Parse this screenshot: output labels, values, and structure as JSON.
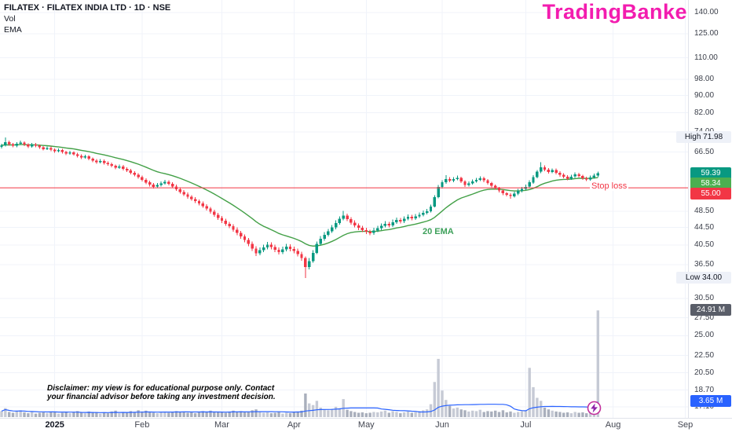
{
  "legend": {
    "symbol_line": "FILATEX · FILATEX INDIA LTD · 1D · NSE",
    "vol_label": "Vol",
    "ema_label": "EMA"
  },
  "watermark": {
    "text": "TradingBanker",
    "color": "#f31caf"
  },
  "annotations": {
    "stop_loss_label": "Stop loss",
    "ema_label": "20 EMA",
    "ema_label_color": "#3da05a",
    "disclaimer_line1": "Disclaimer: my view is for educational purpose only. Contact",
    "disclaimer_line2": "your financial advisor before taking any investment decision."
  },
  "price_axis": {
    "ticks": [
      {
        "label": "140.00",
        "price": 140
      },
      {
        "label": "125.00",
        "price": 125
      },
      {
        "label": "110.00",
        "price": 110
      },
      {
        "label": "98.00",
        "price": 98
      },
      {
        "label": "90.00",
        "price": 90
      },
      {
        "label": "82.00",
        "price": 82
      },
      {
        "label": "74.00",
        "price": 74
      },
      {
        "label": "66.50",
        "price": 66.5
      },
      {
        "label": "48.50",
        "price": 48.5
      },
      {
        "label": "44.50",
        "price": 44.5
      },
      {
        "label": "40.50",
        "price": 40.5
      },
      {
        "label": "36.50",
        "price": 36.5
      },
      {
        "label": "30.50",
        "price": 30.5
      },
      {
        "label": "27.50",
        "price": 27.5
      },
      {
        "label": "25.00",
        "price": 25
      },
      {
        "label": "22.50",
        "price": 22.5
      },
      {
        "label": "20.50",
        "price": 20.5
      },
      {
        "label": "18.70",
        "price": 18.7
      },
      {
        "label": "17.10",
        "price": 17.1
      }
    ],
    "badges": [
      {
        "kind": "range",
        "label": "High",
        "value": "71.98",
        "price": 71.98,
        "bg": "#eef1f8",
        "fg": "#131722"
      },
      {
        "kind": "price",
        "value": "59.39",
        "price": 59.39,
        "bg": "#089981",
        "fg": "#ffffff"
      },
      {
        "kind": "price",
        "value": "58.34",
        "price": 58.34,
        "bg": "#4caf50",
        "fg": "#ffffff"
      },
      {
        "kind": "price",
        "value": "55.00",
        "price": 55,
        "bg": "#f23645",
        "fg": "#ffffff"
      },
      {
        "kind": "range",
        "label": "Low",
        "value": "34.00",
        "price": 34,
        "bg": "#eef1f8",
        "fg": "#131722"
      },
      {
        "kind": "volume",
        "value": "24.91 M",
        "volume": 24.91,
        "bg": "#5a5e69",
        "fg": "#ffffff"
      },
      {
        "kind": "volume",
        "value": "3.65 M",
        "volume": 3.65,
        "bg": "#2962ff",
        "fg": "#ffffff"
      }
    ]
  },
  "time_axis": {
    "months": [
      {
        "label": "2025",
        "idx": 14,
        "bold": true
      },
      {
        "label": "Feb",
        "idx": 37
      },
      {
        "label": "Mar",
        "idx": 58
      },
      {
        "label": "Apr",
        "idx": 77
      },
      {
        "label": "May",
        "idx": 96
      },
      {
        "label": "Jun",
        "idx": 116
      },
      {
        "label": "Jul",
        "idx": 138
      },
      {
        "label": "Aug",
        "idx": 161
      },
      {
        "label": "Sep",
        "idx": 180
      }
    ]
  },
  "chart_data": {
    "type": "candlestick",
    "symbol": "FILATEX INDIA LTD",
    "exchange": "NSE",
    "interval": "1D",
    "scale": "log",
    "price_range_shown": [
      17.1,
      140.0
    ],
    "high": 71.98,
    "low": 34.0,
    "last_close": 59.39,
    "ema20_value": 58.34,
    "stop_loss": 55.0,
    "last_volume_millions": 24.91,
    "volume_ma_millions": 3.65,
    "indicators": [
      {
        "name": "EMA",
        "length": 20,
        "color": "#43a047"
      },
      {
        "name": "Volume",
        "color": "#c6cad5"
      },
      {
        "name": "Volume MA",
        "length": 20,
        "color": "#2962ff"
      }
    ],
    "colors": {
      "up": "#089981",
      "down": "#f23645",
      "ema": "#43a047",
      "vol_up": "#c6cad5",
      "vol_down": "#a9afbc",
      "vol_ma": "#2962ff",
      "stop_line": "#f23645",
      "grid": "#f0f3fa"
    },
    "columns": [
      "open",
      "high",
      "low",
      "close",
      "volume_millions"
    ],
    "candles": [
      [
        68.4,
        69.6,
        67.9,
        69.0,
        1.4
      ],
      [
        69.0,
        71.98,
        68.6,
        70.2,
        2.1
      ],
      [
        70.2,
        70.8,
        68.9,
        69.4,
        1.2
      ],
      [
        69.4,
        69.9,
        68.2,
        68.8,
        1.0
      ],
      [
        68.8,
        70.2,
        68.3,
        69.6,
        1.3
      ],
      [
        69.6,
        70.7,
        69.1,
        70.0,
        1.6
      ],
      [
        70.0,
        70.5,
        68.7,
        69.2,
        1.1
      ],
      [
        69.2,
        69.7,
        68.0,
        68.5,
        0.9
      ],
      [
        68.5,
        69.9,
        68.1,
        69.3,
        1.2
      ],
      [
        69.3,
        69.8,
        68.3,
        68.8,
        0.8
      ],
      [
        68.8,
        69.3,
        67.7,
        68.2,
        1.0
      ],
      [
        68.2,
        68.7,
        67.1,
        67.6,
        1.1
      ],
      [
        67.6,
        68.6,
        67.2,
        68.0,
        0.9
      ],
      [
        68.0,
        68.5,
        66.9,
        67.4,
        1.3
      ],
      [
        67.4,
        67.9,
        66.3,
        66.8,
        1.2
      ],
      [
        66.8,
        67.8,
        66.4,
        67.2,
        0.8
      ],
      [
        67.2,
        67.7,
        66.0,
        66.5,
        1.0
      ],
      [
        66.5,
        67.0,
        65.5,
        66.0,
        1.1
      ],
      [
        66.0,
        67.0,
        65.6,
        66.4,
        0.9
      ],
      [
        66.4,
        66.9,
        65.3,
        65.8,
        1.2
      ],
      [
        65.8,
        66.3,
        64.7,
        65.2,
        1.4
      ],
      [
        65.2,
        65.7,
        64.1,
        64.6,
        1.1
      ],
      [
        64.6,
        65.6,
        64.2,
        65.0,
        0.9
      ],
      [
        65.0,
        65.5,
        63.7,
        64.2,
        1.3
      ],
      [
        64.2,
        64.7,
        63.1,
        63.6,
        1.0
      ],
      [
        63.6,
        64.1,
        62.5,
        63.0,
        1.2
      ],
      [
        63.0,
        64.1,
        62.6,
        63.5,
        0.8
      ],
      [
        63.5,
        64.0,
        62.3,
        62.8,
        1.1
      ],
      [
        62.8,
        63.3,
        61.9,
        62.4,
        0.9
      ],
      [
        62.4,
        62.9,
        61.3,
        61.8,
        1.3
      ],
      [
        61.8,
        62.3,
        60.7,
        61.2,
        1.5
      ],
      [
        61.2,
        62.2,
        60.8,
        61.6,
        0.9
      ],
      [
        61.6,
        62.1,
        60.3,
        60.8,
        1.2
      ],
      [
        60.8,
        61.3,
        59.8,
        60.3,
        1.0
      ],
      [
        60.3,
        60.8,
        59.1,
        59.6,
        1.4
      ],
      [
        59.6,
        60.1,
        58.5,
        59.0,
        1.2
      ],
      [
        59.0,
        59.5,
        57.7,
        58.2,
        1.6
      ],
      [
        58.2,
        58.7,
        56.9,
        57.4,
        1.3
      ],
      [
        57.4,
        57.9,
        56.1,
        56.6,
        1.5
      ],
      [
        56.6,
        57.1,
        55.4,
        55.9,
        1.2
      ],
      [
        55.9,
        56.4,
        54.8,
        55.3,
        1.0
      ],
      [
        55.3,
        56.4,
        54.9,
        55.8,
        0.9
      ],
      [
        55.8,
        56.9,
        55.4,
        56.3,
        1.1
      ],
      [
        56.3,
        57.4,
        55.9,
        56.8,
        1.3
      ],
      [
        56.8,
        57.3,
        55.7,
        56.2,
        1.0
      ],
      [
        56.2,
        56.7,
        54.9,
        55.4,
        1.2
      ],
      [
        55.4,
        55.9,
        54.1,
        54.6,
        1.4
      ],
      [
        54.6,
        55.1,
        53.3,
        53.8,
        1.1
      ],
      [
        53.8,
        54.3,
        52.6,
        53.1,
        1.3
      ],
      [
        53.1,
        53.6,
        51.9,
        52.4,
        1.0
      ],
      [
        52.4,
        52.9,
        51.3,
        51.8,
        1.2
      ],
      [
        51.8,
        52.3,
        50.7,
        51.2,
        0.9
      ],
      [
        51.2,
        51.7,
        50.1,
        50.6,
        1.1
      ],
      [
        50.6,
        51.1,
        49.4,
        49.9,
        1.4
      ],
      [
        49.9,
        50.4,
        48.7,
        49.2,
        1.2
      ],
      [
        49.2,
        49.7,
        47.9,
        48.4,
        1.5
      ],
      [
        48.4,
        48.9,
        47.1,
        47.6,
        1.3
      ],
      [
        47.6,
        48.1,
        46.3,
        46.8,
        1.1
      ],
      [
        46.8,
        47.3,
        45.6,
        46.1,
        1.2
      ],
      [
        46.1,
        46.6,
        44.9,
        45.4,
        1.0
      ],
      [
        45.4,
        45.9,
        44.3,
        44.8,
        1.3
      ],
      [
        44.8,
        45.3,
        43.5,
        44.0,
        1.5
      ],
      [
        44.0,
        44.5,
        42.7,
        43.2,
        1.2
      ],
      [
        43.2,
        43.7,
        41.9,
        42.4,
        1.4
      ],
      [
        42.4,
        42.9,
        41.1,
        41.6,
        1.1
      ],
      [
        41.6,
        42.1,
        40.3,
        40.8,
        1.3
      ],
      [
        40.8,
        41.3,
        39.3,
        39.8,
        1.6
      ],
      [
        39.8,
        40.3,
        38.2,
        38.8,
        1.8
      ],
      [
        38.8,
        40.0,
        38.4,
        39.4,
        1.2
      ],
      [
        39.4,
        40.6,
        39.0,
        40.0,
        1.0
      ],
      [
        40.0,
        41.2,
        39.6,
        40.6,
        1.1
      ],
      [
        40.6,
        41.1,
        39.6,
        40.1,
        0.9
      ],
      [
        40.1,
        40.6,
        39.0,
        39.5,
        1.0
      ],
      [
        39.5,
        40.0,
        38.5,
        39.0,
        1.2
      ],
      [
        39.0,
        40.2,
        38.6,
        39.6,
        0.8
      ],
      [
        39.6,
        40.8,
        39.2,
        40.2,
        1.0
      ],
      [
        40.2,
        40.7,
        39.2,
        39.7,
        0.9
      ],
      [
        39.7,
        40.2,
        38.8,
        39.3,
        1.1
      ],
      [
        39.3,
        39.8,
        38.1,
        38.6,
        1.3
      ],
      [
        38.6,
        39.1,
        37.3,
        37.8,
        1.5
      ],
      [
        37.8,
        38.1,
        34.0,
        36.0,
        5.5
      ],
      [
        36.0,
        37.8,
        35.6,
        37.2,
        3.2
      ],
      [
        37.2,
        39.4,
        36.9,
        38.9,
        2.8
      ],
      [
        38.9,
        41.3,
        38.6,
        40.8,
        3.8
      ],
      [
        40.8,
        42.5,
        40.4,
        41.9,
        2.2
      ],
      [
        41.9,
        43.4,
        41.5,
        42.8,
        1.8
      ],
      [
        42.8,
        44.2,
        42.4,
        43.6,
        1.6
      ],
      [
        43.6,
        45.1,
        43.2,
        44.5,
        1.9
      ],
      [
        44.5,
        46.2,
        44.1,
        45.6,
        2.4
      ],
      [
        45.6,
        47.2,
        45.2,
        46.6,
        2.1
      ],
      [
        46.6,
        48.6,
        46.2,
        47.4,
        4.2
      ],
      [
        47.4,
        47.9,
        46.0,
        46.5,
        1.7
      ],
      [
        46.5,
        47.0,
        45.2,
        45.7,
        1.4
      ],
      [
        45.7,
        46.2,
        44.5,
        45.0,
        1.2
      ],
      [
        45.0,
        45.5,
        43.9,
        44.4,
        1.0
      ],
      [
        44.4,
        44.9,
        43.4,
        43.9,
        1.1
      ],
      [
        43.9,
        44.4,
        43.0,
        43.5,
        0.9
      ],
      [
        43.5,
        44.0,
        42.7,
        43.2,
        1.0
      ],
      [
        43.2,
        44.4,
        42.8,
        43.8,
        1.2
      ],
      [
        43.8,
        44.9,
        43.4,
        44.3,
        1.1
      ],
      [
        44.3,
        45.5,
        43.9,
        44.9,
        1.3
      ],
      [
        44.9,
        46.0,
        44.5,
        45.4,
        1.5
      ],
      [
        45.4,
        45.9,
        44.5,
        45.0,
        1.0
      ],
      [
        45.0,
        46.4,
        44.6,
        45.8,
        1.4
      ],
      [
        45.8,
        46.9,
        45.4,
        46.3,
        1.2
      ],
      [
        46.3,
        46.8,
        45.5,
        46.0,
        0.9
      ],
      [
        46.0,
        47.2,
        45.6,
        46.6,
        1.1
      ],
      [
        46.6,
        47.7,
        46.2,
        47.1,
        1.3
      ],
      [
        47.1,
        47.6,
        46.2,
        46.7,
        1.0
      ],
      [
        46.7,
        47.8,
        46.3,
        47.2,
        1.2
      ],
      [
        47.2,
        48.2,
        46.8,
        47.6,
        1.4
      ],
      [
        47.6,
        48.7,
        47.2,
        48.1,
        1.6
      ],
      [
        48.1,
        49.1,
        47.7,
        48.5,
        1.8
      ],
      [
        48.5,
        50.3,
        48.2,
        49.8,
        3.0
      ],
      [
        49.8,
        52.9,
        49.5,
        52.3,
        8.2
      ],
      [
        52.3,
        55.8,
        52.0,
        55.2,
        13.6
      ],
      [
        55.2,
        57.3,
        54.8,
        56.6,
        6.2
      ],
      [
        56.6,
        58.8,
        56.2,
        57.6,
        4.0
      ],
      [
        57.6,
        58.2,
        56.6,
        57.1,
        2.6
      ],
      [
        57.1,
        58.2,
        56.7,
        57.6,
        2.0
      ],
      [
        57.6,
        58.7,
        57.2,
        58.0,
        2.2
      ],
      [
        58.0,
        58.4,
        56.4,
        56.9,
        1.8
      ],
      [
        56.9,
        57.3,
        55.3,
        55.8,
        1.6
      ],
      [
        55.8,
        56.9,
        55.4,
        56.3,
        1.3
      ],
      [
        56.3,
        57.5,
        55.9,
        56.9,
        1.5
      ],
      [
        56.9,
        58.0,
        56.5,
        57.4,
        1.4
      ],
      [
        57.4,
        58.5,
        57.0,
        57.9,
        1.7
      ],
      [
        57.9,
        58.3,
        56.7,
        57.2,
        1.2
      ],
      [
        57.2,
        57.6,
        55.9,
        56.4,
        1.4
      ],
      [
        56.4,
        56.8,
        55.1,
        55.6,
        1.3
      ],
      [
        55.6,
        56.0,
        54.4,
        54.9,
        1.5
      ],
      [
        54.9,
        55.3,
        53.7,
        54.2,
        1.2
      ],
      [
        54.2,
        54.6,
        52.9,
        53.4,
        1.6
      ],
      [
        53.4,
        53.8,
        52.5,
        53.0,
        1.1
      ],
      [
        53.0,
        53.4,
        51.9,
        52.6,
        1.3
      ],
      [
        52.6,
        53.9,
        52.2,
        53.3,
        1.0
      ],
      [
        53.3,
        54.7,
        52.9,
        54.1,
        1.2
      ],
      [
        54.1,
        55.3,
        53.7,
        54.7,
        1.4
      ],
      [
        54.7,
        55.9,
        54.3,
        55.3,
        1.6
      ],
      [
        55.3,
        57.2,
        54.9,
        56.6,
        11.5
      ],
      [
        56.6,
        58.8,
        56.2,
        58.2,
        7.0
      ],
      [
        58.2,
        60.5,
        57.8,
        59.9,
        4.5
      ],
      [
        59.9,
        63.1,
        59.5,
        61.4,
        3.8
      ],
      [
        61.4,
        62.0,
        60.1,
        60.6,
        2.2
      ],
      [
        60.6,
        61.1,
        59.3,
        59.8,
        1.8
      ],
      [
        59.8,
        61.0,
        59.4,
        60.4,
        1.5
      ],
      [
        60.4,
        60.9,
        59.1,
        59.6,
        1.3
      ],
      [
        59.6,
        60.1,
        58.4,
        58.9,
        1.2
      ],
      [
        58.9,
        59.4,
        57.8,
        58.3,
        1.0
      ],
      [
        58.3,
        58.8,
        57.3,
        57.8,
        1.1
      ],
      [
        57.8,
        59.0,
        57.4,
        58.4,
        0.9
      ],
      [
        58.4,
        59.7,
        58.0,
        59.1,
        1.2
      ],
      [
        59.1,
        59.6,
        58.1,
        58.6,
        1.0
      ],
      [
        58.6,
        59.0,
        57.4,
        57.9,
        1.1
      ],
      [
        57.9,
        58.4,
        57.0,
        57.5,
        0.9
      ],
      [
        57.5,
        58.7,
        57.1,
        58.1,
        1.3
      ],
      [
        58.1,
        59.3,
        57.7,
        58.7,
        1.8
      ],
      [
        58.7,
        60.0,
        58.2,
        59.39,
        24.91
      ]
    ]
  }
}
